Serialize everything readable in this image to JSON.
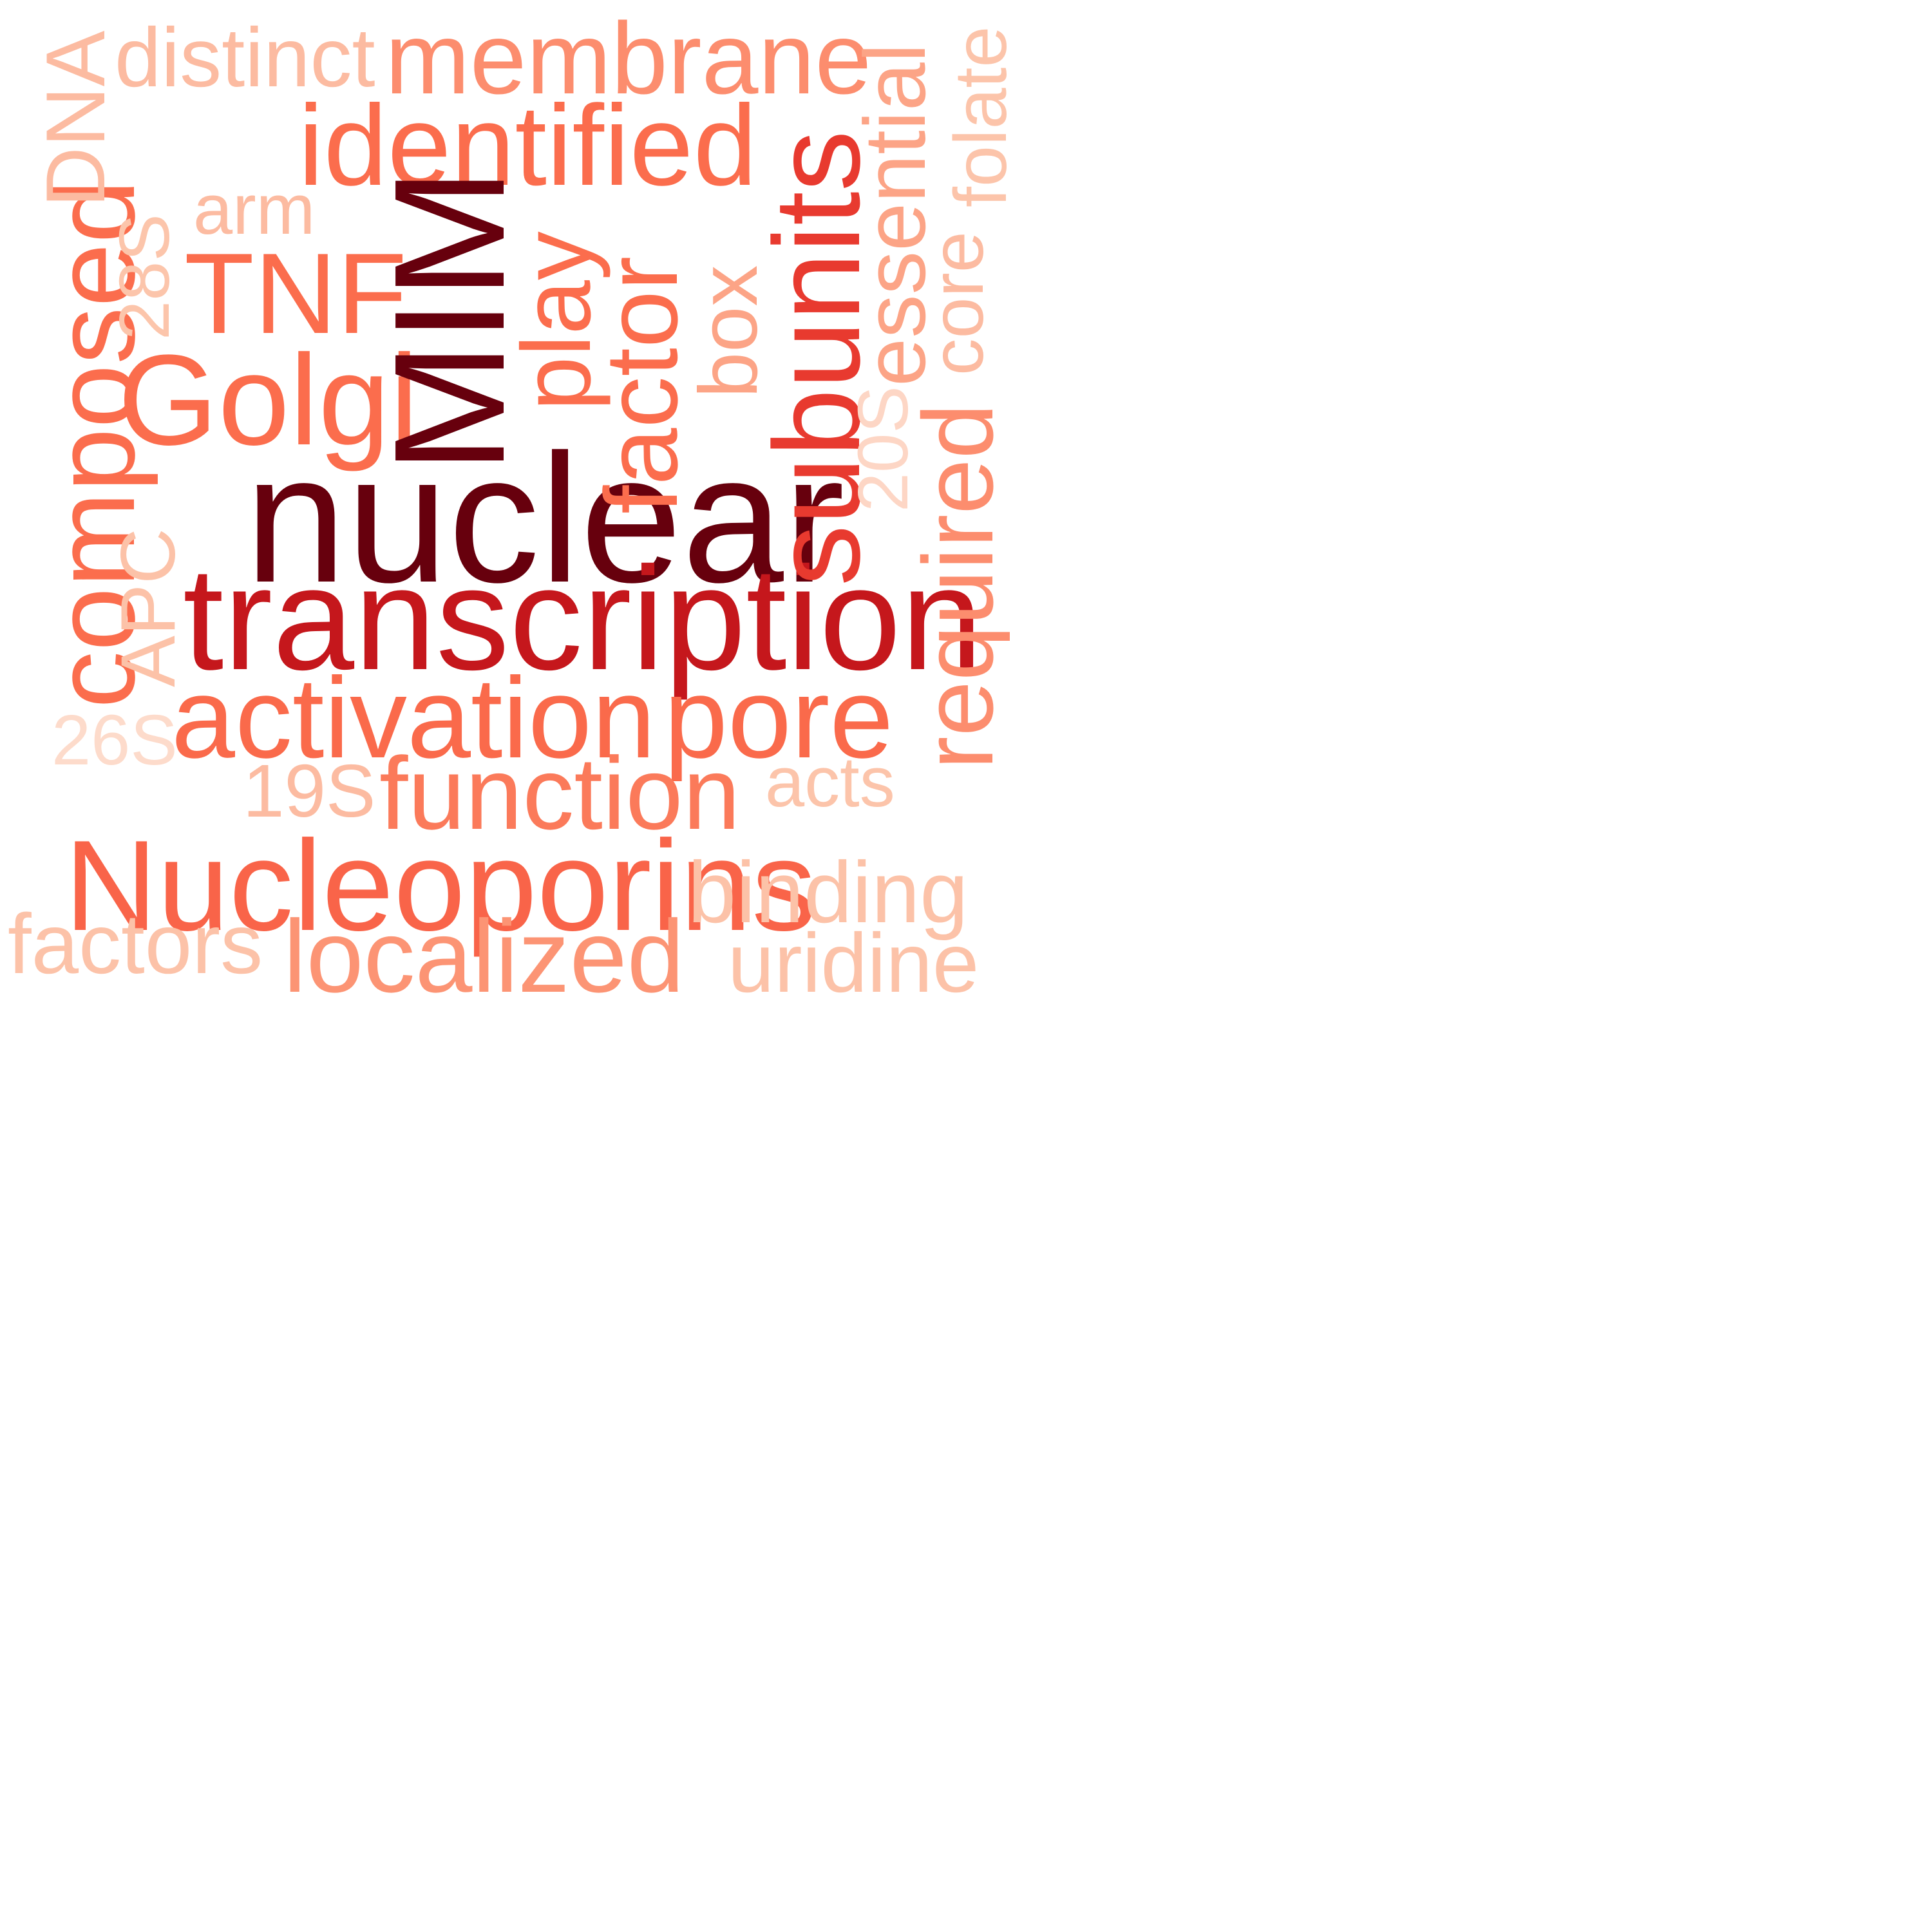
{
  "words": {
    "mim": {
      "text": "MIM",
      "color": "#67000d"
    },
    "nuclear": {
      "text": "nuclear",
      "color": "#67000d"
    },
    "transcription": {
      "text": "transcription",
      "color": "#c5171c"
    },
    "subunits": {
      "text": "subunits",
      "color": "#e83a2f"
    },
    "activation": {
      "text": "activation",
      "color": "#fa6a4b"
    },
    "pore": {
      "text": "pore",
      "color": "#fa6a4b"
    },
    "function": {
      "text": "function",
      "color": "#fb7a5a"
    },
    "nucleoporins": {
      "text": "Nucleoporins",
      "color": "#f96449"
    },
    "identified": {
      "text": "identified",
      "color": "#fb6d4d"
    },
    "golgi": {
      "text": "Golgi",
      "color": "#fb6d4d"
    },
    "tnf": {
      "text": "TNF",
      "color": "#fb6d4d"
    },
    "factor": {
      "text": "factor",
      "color": "#fb6d4d"
    },
    "play": {
      "text": "play",
      "color": "#fb6d4d"
    },
    "composed": {
      "text": "composed",
      "color": "#fb6d4d"
    },
    "membrane": {
      "text": "membrane",
      "color": "#fc8d6e"
    },
    "required": {
      "text": "required",
      "color": "#fc8d6e"
    },
    "localized": {
      "text": "localized",
      "color": "#fc9474"
    },
    "essential": {
      "text": "essential",
      "color": "#fca486"
    },
    "box": {
      "text": "box",
      "color": "#fca486"
    },
    "distinct": {
      "text": "distinct",
      "color": "#fcbba1"
    },
    "dna": {
      "text": "DNA",
      "color": "#fcbba1"
    },
    "arm": {
      "text": "arm",
      "color": "#fcbba1"
    },
    "s28": {
      "text": "28S",
      "color": "#fcc5ab"
    },
    "apc": {
      "text": "APC",
      "color": "#fcc2a8"
    },
    "folate": {
      "text": "folate",
      "color": "#fcc4aa"
    },
    "core": {
      "text": "core",
      "color": "#fcbba1"
    },
    "s20": {
      "text": "20S",
      "color": "#fdd6c5"
    },
    "s26": {
      "text": "26S",
      "color": "#fddbcb"
    },
    "s19": {
      "text": "19S",
      "color": "#fcbba1"
    },
    "acts": {
      "text": "acts",
      "color": "#fcc4aa"
    },
    "binding": {
      "text": "binding",
      "color": "#fcc2a8"
    },
    "factors": {
      "text": "factors",
      "color": "#fcc2a8"
    },
    "uridine": {
      "text": "uridine",
      "color": "#fcc2a8"
    }
  }
}
